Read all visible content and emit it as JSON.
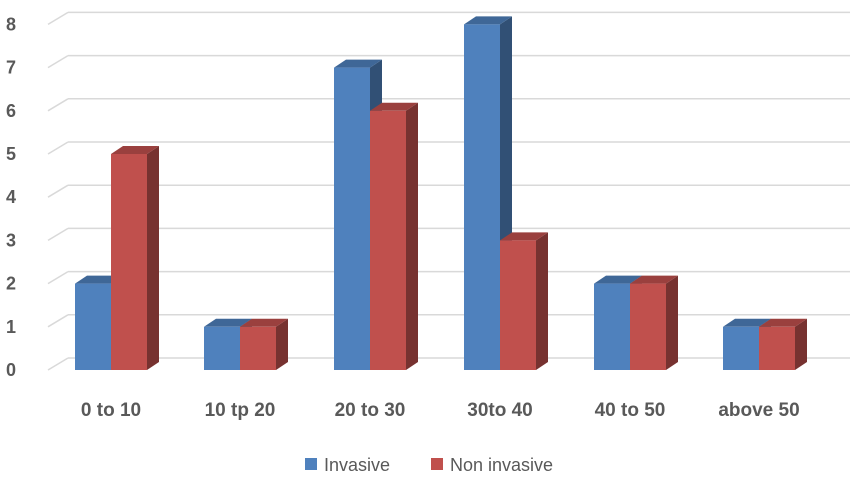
{
  "chart_data": {
    "type": "bar",
    "style": "3d-clustered-column",
    "categories": [
      "0 to 10",
      "10 tp 20",
      "20 to 30",
      "30to 40",
      "40 to 50",
      "above 50"
    ],
    "series": [
      {
        "name": "Invasive",
        "values": [
          2,
          1,
          7,
          8,
          2,
          1
        ],
        "color": "#4F81BD"
      },
      {
        "name": "Non invasive",
        "values": [
          5,
          1,
          6,
          3,
          2,
          1
        ],
        "color": "#C0504D"
      }
    ],
    "title": "",
    "xlabel": "",
    "ylabel": "",
    "ylim": [
      0,
      8
    ],
    "yticks": [
      "0",
      "1",
      "2",
      "3",
      "4",
      "5",
      "6",
      "7",
      "8"
    ],
    "grid": true,
    "legend_position": "bottom"
  }
}
